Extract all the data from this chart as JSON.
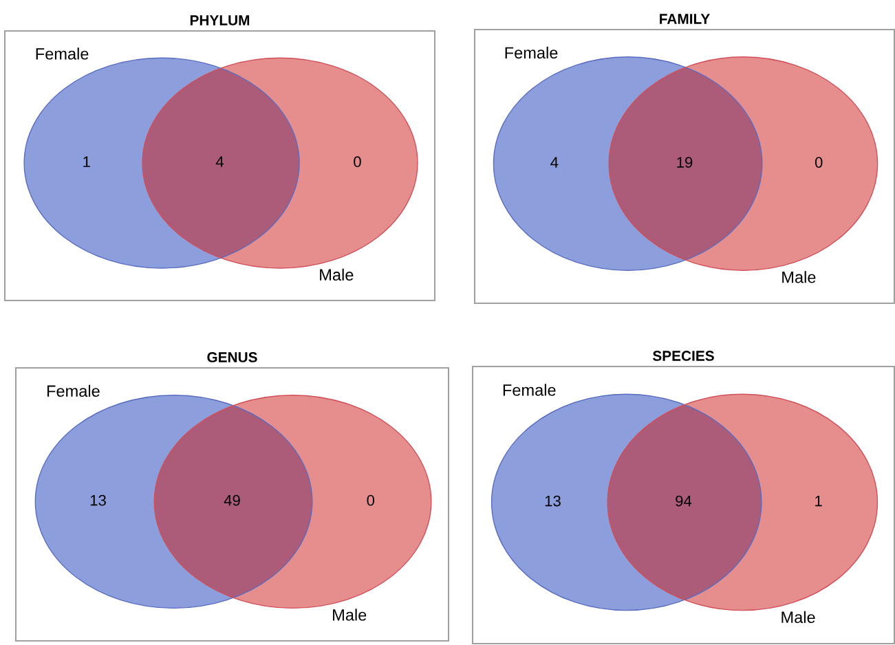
{
  "chart_data": [
    {
      "type": "other",
      "title": "PHYLUM",
      "categories": [
        "Female",
        null,
        "Male"
      ],
      "values": [
        1,
        4,
        0
      ],
      "colors": [
        "#8c9fdc",
        "#ac5c78",
        "#e68e8e"
      ],
      "data_labels": true
    },
    {
      "type": "other",
      "title": "FAMILY",
      "categories": [
        "Female",
        null,
        "Male"
      ],
      "values": [
        4,
        19,
        0
      ],
      "colors": [
        "#8c9fdc",
        "#ac5c78",
        "#e68e8e"
      ],
      "data_labels": true
    },
    {
      "type": "other",
      "title": "GENUS",
      "categories": [
        "Female",
        null,
        "Male"
      ],
      "values": [
        13,
        49,
        0
      ],
      "colors": [
        "#8c9fdc",
        "#ac5c78",
        "#e68e8e"
      ],
      "data_labels": true
    },
    {
      "type": "other",
      "title": "SPECIES",
      "categories": [
        "Female",
        null,
        "Male"
      ],
      "values": [
        13,
        94,
        1
      ],
      "colors": [
        "#8c9fdc",
        "#ac5c78",
        "#e68e8e"
      ],
      "data_labels": true
    }
  ]
}
